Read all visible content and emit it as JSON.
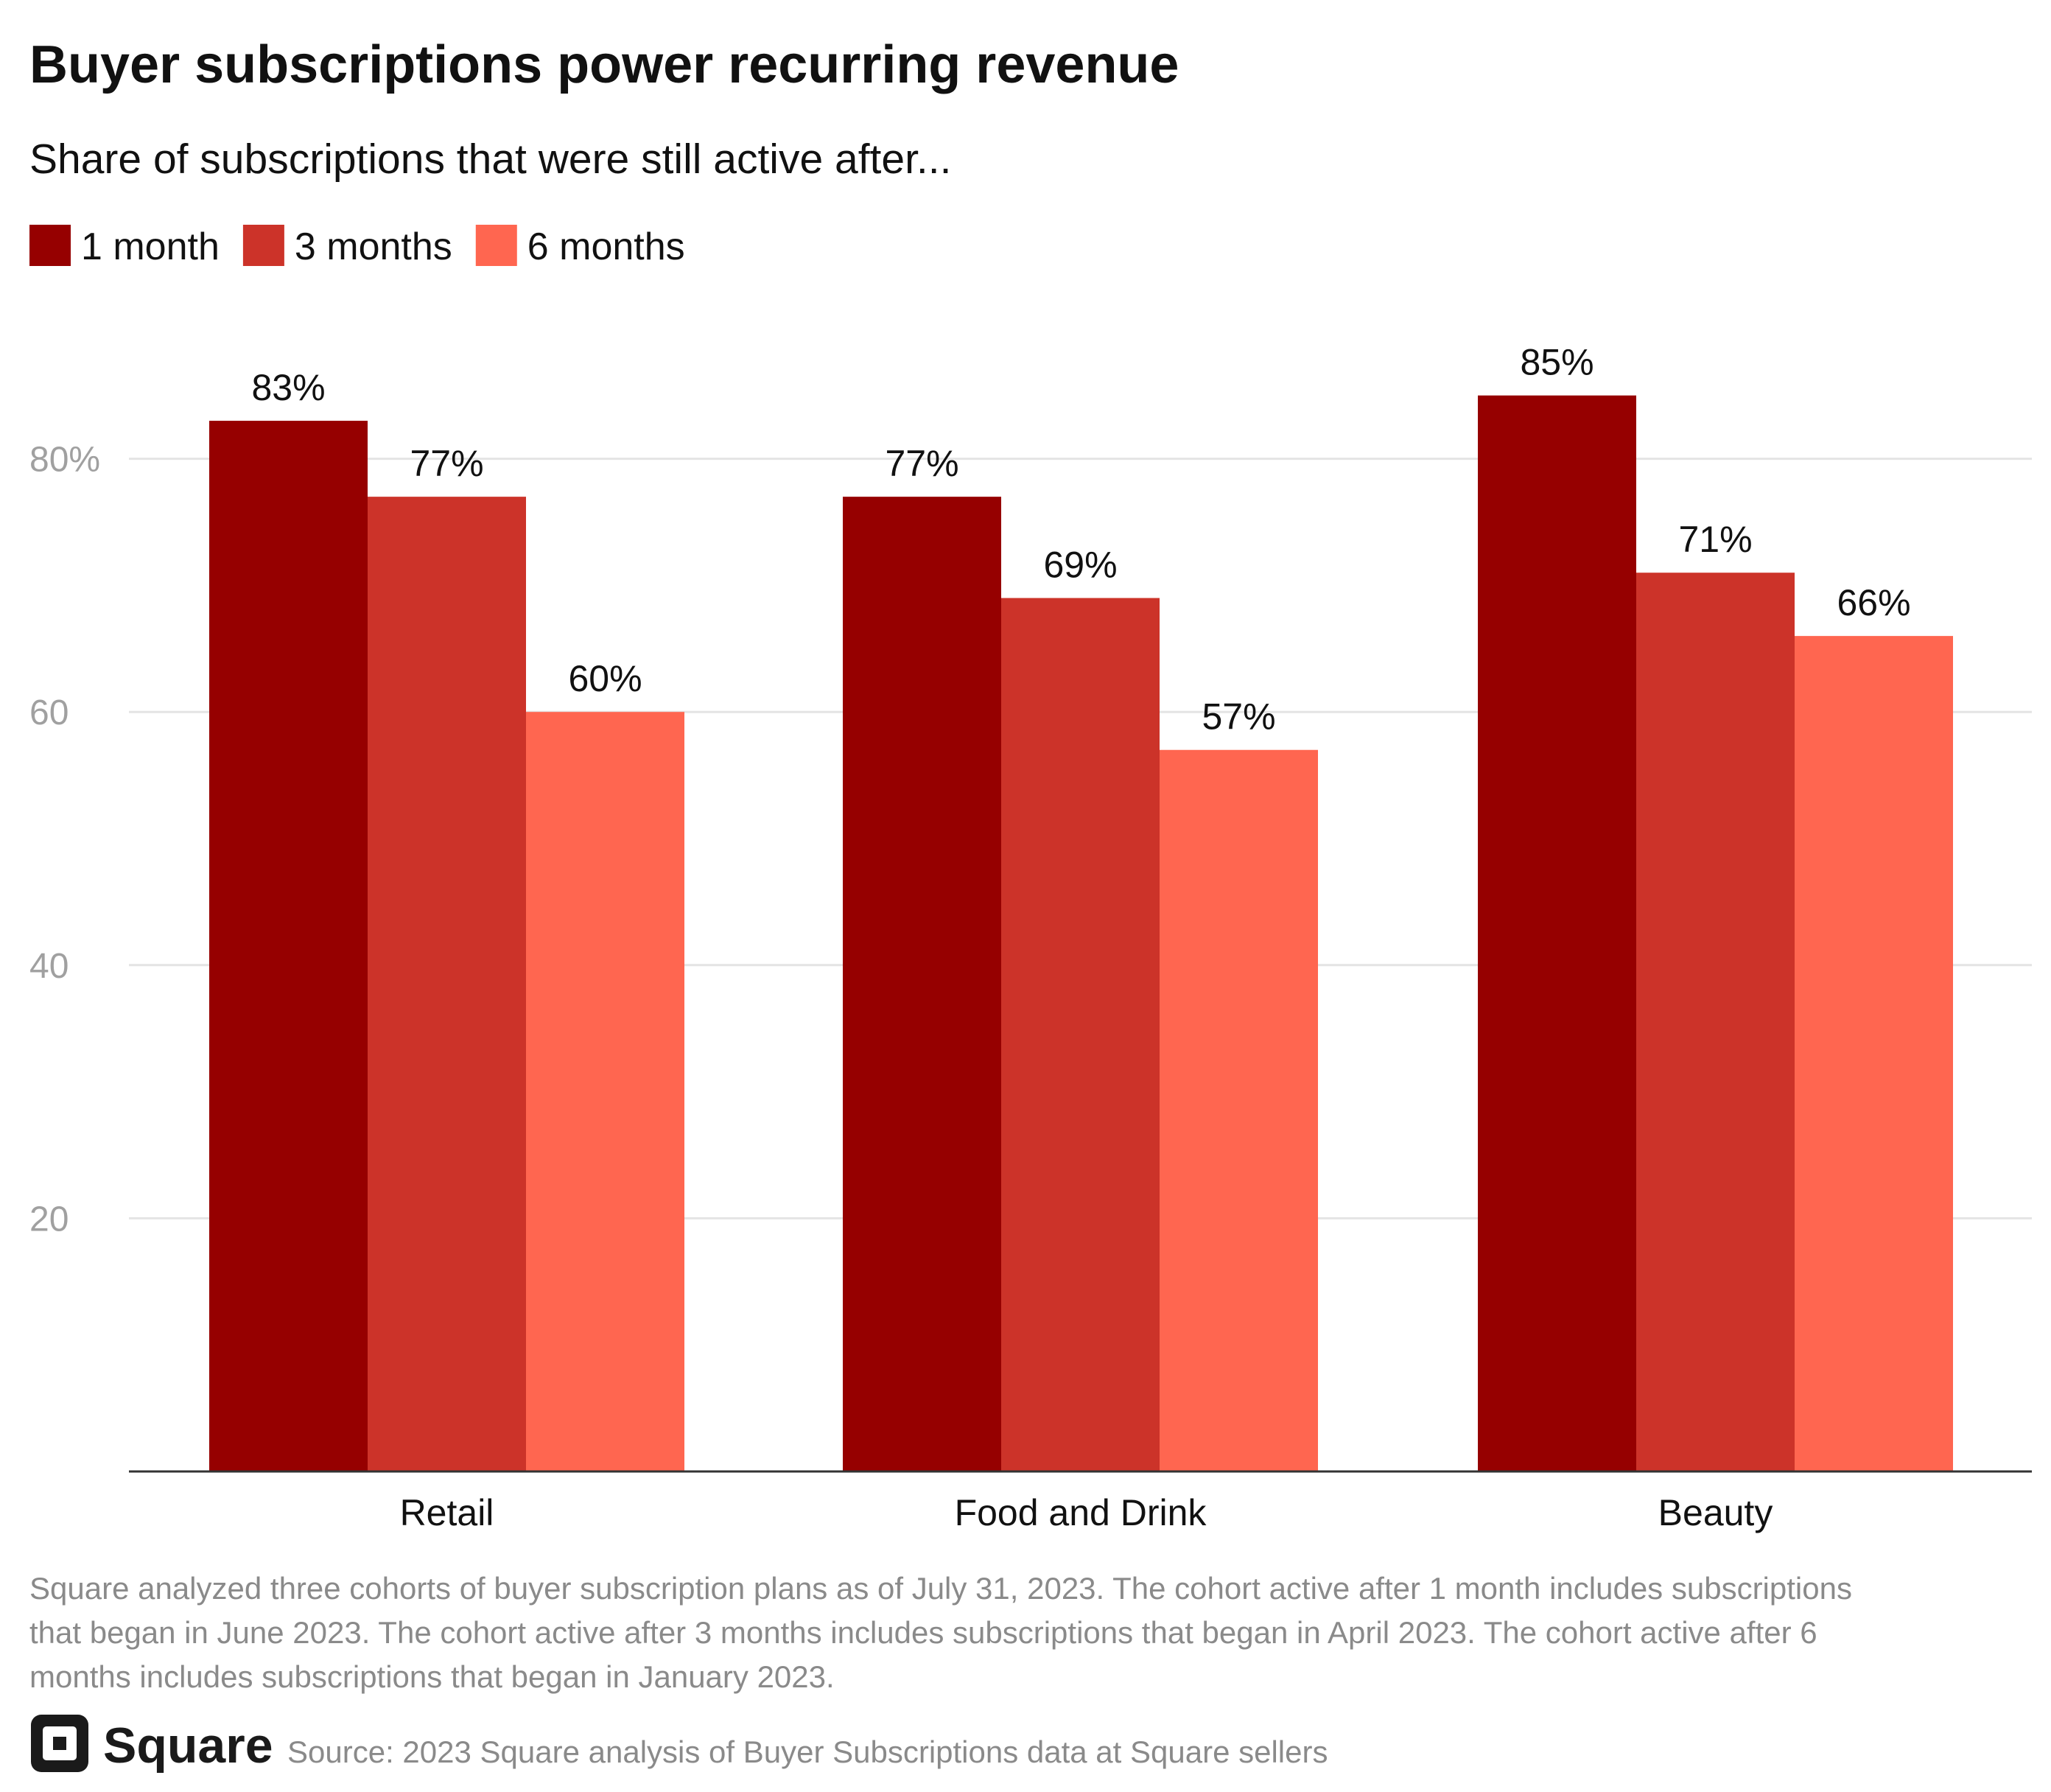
{
  "chart_data": {
    "type": "bar",
    "title": "Buyer subscriptions power recurring revenue",
    "subtitle": "Share of subscriptions that were still active after...",
    "categories": [
      "Retail",
      "Food and Drink",
      "Beauty"
    ],
    "series": [
      {
        "name": "1 month",
        "values": [
          83,
          77,
          85
        ],
        "labels": [
          "83%",
          "77%",
          "85%"
        ],
        "color": "#960000"
      },
      {
        "name": "3 months",
        "values": [
          77,
          69,
          71
        ],
        "labels": [
          "77%",
          "69%",
          "71%"
        ],
        "color": "#cc3329"
      },
      {
        "name": "6 months",
        "values": [
          60,
          57,
          66
        ],
        "labels": [
          "60%",
          "57%",
          "66%"
        ],
        "color": "#ff6650"
      }
    ],
    "yticks": [
      20,
      40,
      60,
      80
    ],
    "ytick_labels": [
      "20",
      "40",
      "60",
      "80%"
    ],
    "ylim": [
      0,
      80
    ],
    "grid": true,
    "legend_position": "top-left",
    "xlabel": "",
    "ylabel": ""
  },
  "footnote": [
    "Square analyzed three cohorts of buyer subscription plans as of July 31, 2023. The cohort active after 1 month includes subscriptions",
    "that began in June 2023. The cohort active after 3 months includes subscriptions that began in April 2023. The cohort active after 6",
    "months includes subscriptions that began in January 2023."
  ],
  "brand": "Square",
  "source": "Source: 2023 Square analysis of Buyer Subscriptions data at Square sellers"
}
